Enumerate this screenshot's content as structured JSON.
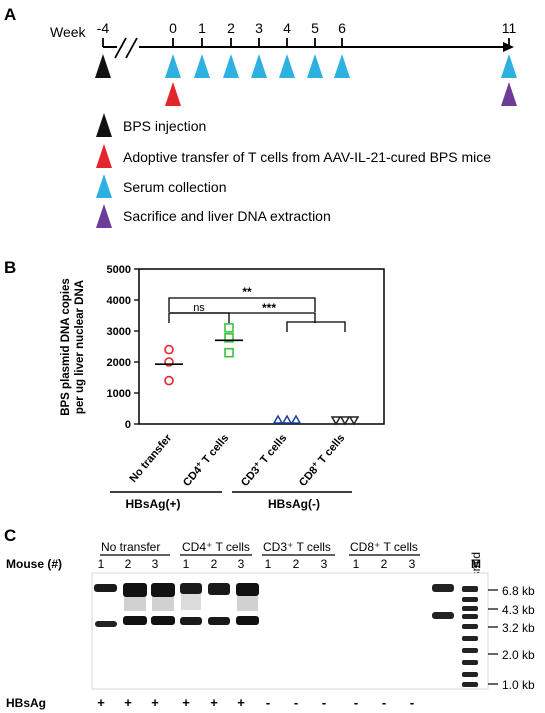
{
  "panel_a": {
    "label": "A",
    "week_label": "Week",
    "weeks": [
      "-4",
      "0",
      "1",
      "2",
      "3",
      "4",
      "5",
      "6",
      "11"
    ],
    "legend": [
      {
        "color": "#111111",
        "text": "BPS injection"
      },
      {
        "color": "#e3262a",
        "text": "Adoptive transfer of T cells from AAV-IL-21-cured BPS mice"
      },
      {
        "color": "#2cb1e1",
        "text": "Serum collection"
      },
      {
        "color": "#6b3c98",
        "text": "Sacrifice and liver DNA extraction"
      }
    ]
  },
  "panel_b": {
    "label": "B",
    "ylabel_line1": "BPS plasmid DNA copies",
    "ylabel_line2": "per ug liver nuclear DNA",
    "group_pos": "HBsAg(+)",
    "group_neg": "HBsAg(-)",
    "sig": {
      "ns": "ns",
      "double": "**",
      "triple": "***"
    }
  },
  "chart_data": {
    "type": "scatter",
    "title": "",
    "xlabel": "",
    "ylabel": "BPS plasmid DNA copies per ug liver nuclear DNA",
    "ylim": [
      0,
      5000
    ],
    "yticks": [
      "0",
      "1000",
      "2000",
      "3000",
      "4000",
      "5000"
    ],
    "categories": [
      "No transfer",
      "CD4+ T cells",
      "CD3+ T cells",
      "CD8+ T cells"
    ],
    "series": [
      {
        "name": "No transfer",
        "marker": "circle",
        "color": "#e3262a",
        "values": [
          2400,
          2000,
          1400
        ],
        "mean": 1930
      },
      {
        "name": "CD4+ T cells",
        "marker": "square",
        "color": "#38c43a",
        "values": [
          3100,
          2780,
          2300
        ],
        "mean": 2700
      },
      {
        "name": "CD3+ T cells",
        "marker": "triangle-up",
        "color": "#1f3f99",
        "values": [
          0,
          0,
          0
        ],
        "mean": 0
      },
      {
        "name": "CD8+ T cells",
        "marker": "triangle-down",
        "color": "#222222",
        "values": [
          0,
          0,
          0
        ],
        "mean": 0
      }
    ]
  },
  "panel_c": {
    "label": "C",
    "mouse_label": "Mouse (#)",
    "groups": [
      "No transfer",
      "CD4⁺ T cells",
      "CD3⁺ T cells",
      "CD8⁺ T cells"
    ],
    "lane_numbers": [
      "1",
      "2",
      "3"
    ],
    "plasmid_label": "BPS plasmid",
    "marker_label": "M",
    "sizes": [
      "6.8 kb",
      "4.3 kb",
      "3.2 kb",
      "2.0 kb",
      "1.0 kb"
    ],
    "hbsag_label": "HBsAg",
    "hbsag": [
      "+",
      "+",
      "+",
      "+",
      "+",
      "+",
      "-",
      "-",
      "-",
      "-",
      "-",
      "-"
    ]
  }
}
